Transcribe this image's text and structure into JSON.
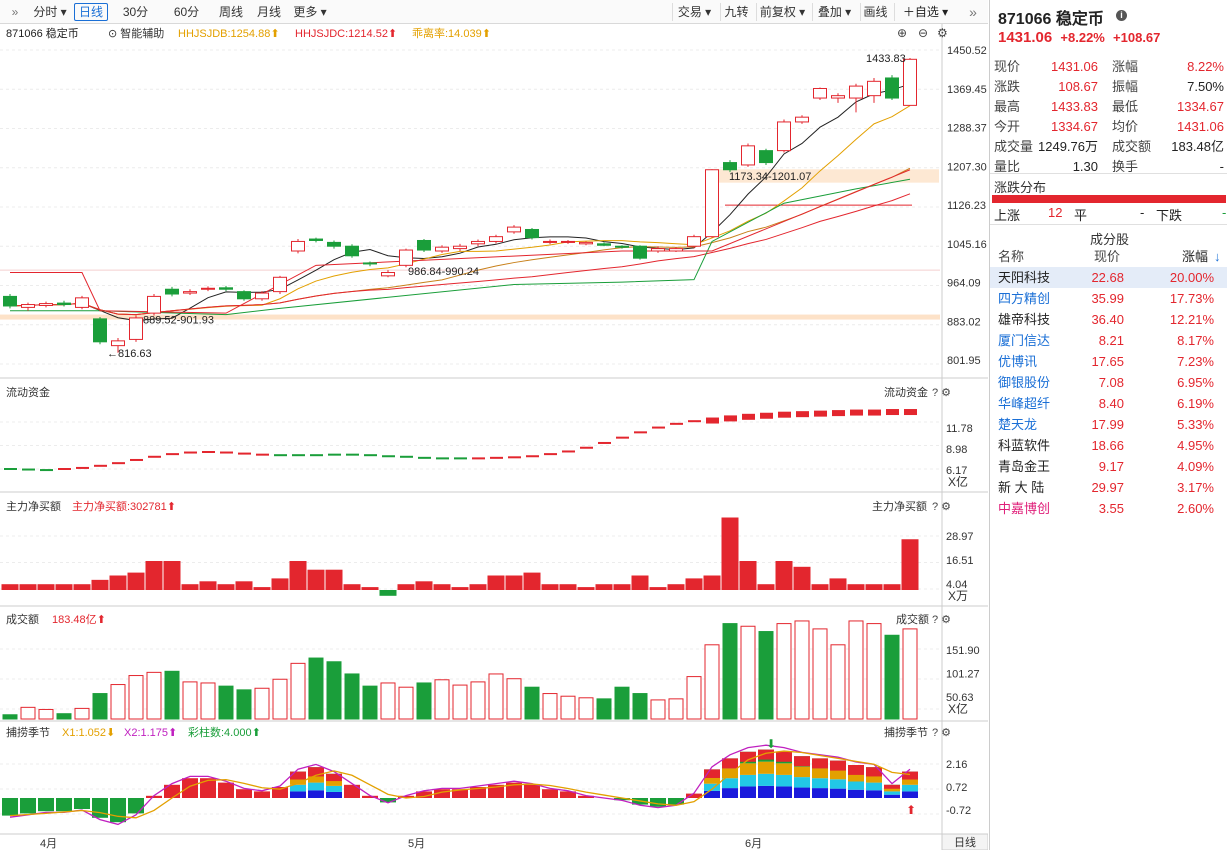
{
  "toolbar": {
    "left_tabs": [
      {
        "label": "分时",
        "dropdown": true,
        "active": false
      },
      {
        "label": "日线",
        "dropdown": false,
        "active": true
      },
      {
        "label": "30分",
        "dropdown": false,
        "active": false
      },
      {
        "label": "60分",
        "dropdown": false,
        "active": false
      },
      {
        "label": "周线",
        "dropdown": false,
        "active": false
      },
      {
        "label": "月线",
        "dropdown": false,
        "active": false
      },
      {
        "label": "更多",
        "dropdown": true,
        "active": false
      }
    ],
    "right_buttons": [
      {
        "label": "交易",
        "dropdown": true
      },
      {
        "label": "九转",
        "dropdown": false
      },
      {
        "label": "前复权",
        "dropdown": true
      },
      {
        "label": "叠加",
        "dropdown": true
      },
      {
        "label": "画线",
        "dropdown": false
      },
      {
        "label": "自选",
        "dropdown": true
      }
    ],
    "add_icon": "plus-icon",
    "collapse_icon": "double-chevron-right-icon"
  },
  "main_chart": {
    "symbol_title": "871066 稳定币",
    "assist_label": "智能辅助",
    "indicators": [
      {
        "text": "HHJSJDB:1254.88",
        "color": "#e3a000"
      },
      {
        "text": "HHJSJDC:1214.52",
        "color": "#e3262e"
      },
      {
        "text": "乖离率:14.039",
        "color": "#e3a000"
      }
    ],
    "y_ticks": [
      "1450.52",
      "1369.45",
      "1288.37",
      "1207.30",
      "1126.23",
      "1045.16",
      "964.09",
      "883.02",
      "801.95"
    ],
    "annotations": {
      "high": "1433.83",
      "low": "816.63",
      "zone_top": "1173.34-1201.07",
      "zone_mid": "986.84-990.24",
      "zone_low": "889.52-901.93"
    }
  },
  "panels": {
    "flow": {
      "title": "流动资金",
      "right_title": "流动资金",
      "y_ticks": [
        "11.78",
        "8.98",
        "6.17"
      ],
      "unit": "X亿"
    },
    "net_buy": {
      "title": "主力净买额",
      "value_label": "主力净买额:302781",
      "right_title": "主力净买额",
      "y_ticks": [
        "28.97",
        "16.51",
        "4.04"
      ],
      "unit": "X万"
    },
    "turnover": {
      "title": "成交额",
      "value_label": "183.48亿",
      "right_title": "成交额",
      "y_ticks": [
        "151.90",
        "101.27",
        "50.63"
      ],
      "unit": "X亿"
    },
    "season": {
      "title": "捕捞季节",
      "x1": "X1:1.052",
      "x2": "X2:1.175",
      "bars": "彩柱数:4.000",
      "right_title": "捕捞季节",
      "y_ticks": [
        "2.16",
        "0.72",
        "-0.72"
      ]
    }
  },
  "x_axis": {
    "labels": [
      "4月",
      "5月",
      "6月"
    ],
    "period_button": "日线"
  },
  "colors": {
    "up": "#e3262e",
    "down": "#1a9e3a",
    "accent": "#1a6fd6"
  },
  "chart_data": {
    "type": "candlestick",
    "title": "871066 稳定币",
    "x_labels": [
      "4月",
      "5月",
      "6月"
    ],
    "y_range": [
      801.95,
      1450.52
    ],
    "candles": [
      {
        "o": 935,
        "c": 915,
        "h": 940,
        "l": 910
      },
      {
        "o": 912,
        "c": 918,
        "h": 922,
        "l": 905
      },
      {
        "o": 916,
        "c": 920,
        "h": 924,
        "l": 912
      },
      {
        "o": 921,
        "c": 918,
        "h": 926,
        "l": 914
      },
      {
        "o": 912,
        "c": 932,
        "h": 936,
        "l": 908
      },
      {
        "o": 888,
        "c": 840,
        "h": 892,
        "l": 835
      },
      {
        "o": 832,
        "c": 842,
        "h": 848,
        "l": 817
      },
      {
        "o": 845,
        "c": 890,
        "h": 895,
        "l": 840
      },
      {
        "o": 900,
        "c": 935,
        "h": 940,
        "l": 895
      },
      {
        "o": 950,
        "c": 940,
        "h": 955,
        "l": 935
      },
      {
        "o": 942,
        "c": 945,
        "h": 950,
        "l": 938
      },
      {
        "o": 950,
        "c": 952,
        "h": 956,
        "l": 946
      },
      {
        "o": 953,
        "c": 950,
        "h": 957,
        "l": 946
      },
      {
        "o": 945,
        "c": 930,
        "h": 948,
        "l": 926
      },
      {
        "o": 930,
        "c": 942,
        "h": 946,
        "l": 926
      },
      {
        "o": 945,
        "c": 975,
        "h": 978,
        "l": 940
      },
      {
        "o": 1030,
        "c": 1050,
        "h": 1055,
        "l": 1025
      },
      {
        "o": 1055,
        "c": 1052,
        "h": 1058,
        "l": 1048
      },
      {
        "o": 1048,
        "c": 1040,
        "h": 1052,
        "l": 1035
      },
      {
        "o": 1040,
        "c": 1020,
        "h": 1044,
        "l": 1016
      },
      {
        "o": 1005,
        "c": 1003,
        "h": 1008,
        "l": 998
      },
      {
        "o": 978,
        "c": 985,
        "h": 990,
        "l": 975
      },
      {
        "o": 1000,
        "c": 1032,
        "h": 1035,
        "l": 996
      },
      {
        "o": 1052,
        "c": 1032,
        "h": 1055,
        "l": 1028
      },
      {
        "o": 1030,
        "c": 1038,
        "h": 1042,
        "l": 1026
      },
      {
        "o": 1035,
        "c": 1040,
        "h": 1045,
        "l": 1030
      },
      {
        "o": 1045,
        "c": 1050,
        "h": 1054,
        "l": 1040
      },
      {
        "o": 1050,
        "c": 1060,
        "h": 1064,
        "l": 1046
      },
      {
        "o": 1070,
        "c": 1080,
        "h": 1084,
        "l": 1066
      },
      {
        "o": 1075,
        "c": 1058,
        "h": 1078,
        "l": 1054
      },
      {
        "o": 1048,
        "c": 1050,
        "h": 1054,
        "l": 1044
      },
      {
        "o": 1048,
        "c": 1050,
        "h": 1053,
        "l": 1045
      },
      {
        "o": 1045,
        "c": 1048,
        "h": 1050,
        "l": 1042
      },
      {
        "o": 1045,
        "c": 1042,
        "h": 1048,
        "l": 1040
      },
      {
        "o": 1040,
        "c": 1038,
        "h": 1042,
        "l": 1035
      },
      {
        "o": 1040,
        "c": 1015,
        "h": 1042,
        "l": 1012
      },
      {
        "o": 1030,
        "c": 1035,
        "h": 1040,
        "l": 1026
      },
      {
        "o": 1030,
        "c": 1035,
        "h": 1038,
        "l": 1028
      },
      {
        "o": 1040,
        "c": 1060,
        "h": 1064,
        "l": 1036
      },
      {
        "o": 1060,
        "c": 1200,
        "h": 1201,
        "l": 1058
      },
      {
        "o": 1215,
        "c": 1200,
        "h": 1220,
        "l": 1195
      },
      {
        "o": 1210,
        "c": 1250,
        "h": 1255,
        "l": 1206
      },
      {
        "o": 1240,
        "c": 1215,
        "h": 1244,
        "l": 1210
      },
      {
        "o": 1240,
        "c": 1300,
        "h": 1305,
        "l": 1236
      },
      {
        "o": 1300,
        "c": 1310,
        "h": 1314,
        "l": 1296
      },
      {
        "o": 1350,
        "c": 1370,
        "h": 1372,
        "l": 1346
      },
      {
        "o": 1350,
        "c": 1355,
        "h": 1360,
        "l": 1340
      },
      {
        "o": 1350,
        "c": 1375,
        "h": 1380,
        "l": 1320
      },
      {
        "o": 1355,
        "c": 1385,
        "h": 1392,
        "l": 1340
      },
      {
        "o": 1392,
        "c": 1350,
        "h": 1398,
        "l": 1346
      },
      {
        "o": 1334.67,
        "c": 1431.06,
        "h": 1433.83,
        "l": 1334.67
      }
    ],
    "volume": [
      8,
      22,
      18,
      10,
      20,
      48,
      65,
      82,
      88,
      90,
      70,
      68,
      62,
      55,
      58,
      75,
      105,
      115,
      108,
      85,
      62,
      68,
      60,
      68,
      74,
      64,
      70,
      85,
      76,
      60,
      48,
      43,
      40,
      38,
      60,
      48,
      36,
      38,
      80,
      140,
      180,
      175,
      165,
      180,
      185,
      170,
      140,
      185,
      180,
      158,
      170
    ],
    "net_buy": [
      4,
      4,
      4,
      4,
      4,
      7,
      10,
      12,
      20,
      20,
      4,
      6,
      4,
      6,
      2,
      8,
      20,
      14,
      14,
      4,
      2,
      -4,
      4,
      6,
      4,
      2,
      4,
      10,
      10,
      12,
      4,
      4,
      2,
      4,
      4,
      10,
      2,
      4,
      8,
      10,
      50,
      20,
      4,
      20,
      16,
      4,
      8,
      4,
      4,
      4,
      35
    ],
    "flow": [
      3.2,
      3.1,
      3.0,
      3.2,
      3.4,
      3.8,
      4.3,
      4.9,
      5.5,
      6.0,
      6.3,
      6.4,
      6.3,
      6.1,
      5.9,
      5.8,
      5.8,
      5.8,
      5.9,
      5.9,
      5.8,
      5.6,
      5.5,
      5.3,
      5.2,
      5.2,
      5.2,
      5.3,
      5.4,
      5.6,
      6.0,
      6.5,
      7.2,
      8.1,
      9.1,
      10.1,
      11.0,
      11.7,
      12.2,
      12.7,
      13.1,
      13.4,
      13.6,
      13.8,
      13.9,
      14.0,
      14.1,
      14.2,
      14.2,
      14.3,
      14.3
    ]
  }
}
